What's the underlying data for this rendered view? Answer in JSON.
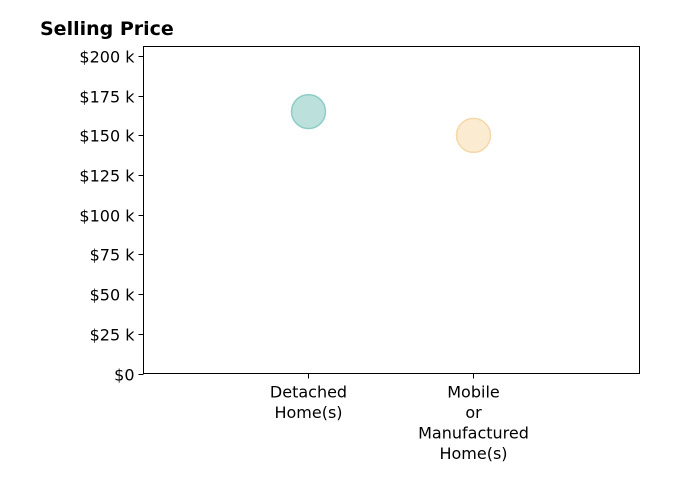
{
  "chart_data": {
    "type": "scatter",
    "title": "Selling Price",
    "xlabel": "",
    "ylabel": "",
    "categories": [
      "Detached\nHome(s)",
      "Mobile\nor\nManufactured\nHome(s)"
    ],
    "values": [
      165000,
      150000
    ],
    "ylim": [
      0,
      206000
    ],
    "yticks": [
      0,
      25000,
      50000,
      75000,
      100000,
      125000,
      150000,
      175000,
      200000
    ],
    "ytick_labels": [
      "$0",
      "$25 k",
      "$50 k",
      "$75 k",
      "$100 k",
      "$125 k",
      "$150 k",
      "$175 k",
      "$200 k"
    ],
    "grid": false,
    "colors": [
      "#8fcdc6",
      "#f8deb0"
    ],
    "edge_colors": [
      "#7cc3bb",
      "#f3d19c"
    ]
  }
}
